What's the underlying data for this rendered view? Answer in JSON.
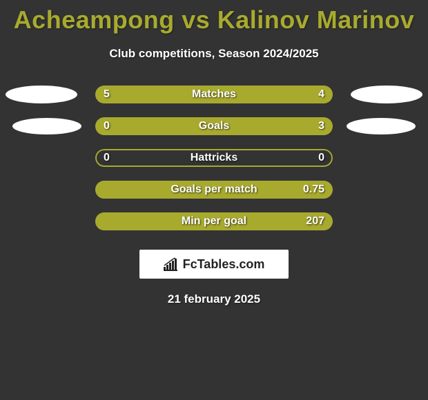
{
  "title": "Acheampong vs Kalinov Marinov",
  "subtitle": "Club competitions, Season 2024/2025",
  "brand": "FcTables.com",
  "date": "21 february 2025",
  "colors": {
    "background": "#333333",
    "accent": "#a8aa2e",
    "text": "#ffffff",
    "ellipse": "#ffffff",
    "brand_bg": "#ffffff",
    "brand_text": "#222222"
  },
  "rows": [
    {
      "label": "Matches",
      "left_value": "5",
      "right_value": "4",
      "fill_left_pct": 55.5,
      "fill_right_pct": 44.5,
      "show_ellipses": true
    },
    {
      "label": "Goals",
      "left_value": "0",
      "right_value": "3",
      "fill_left_pct": 19,
      "fill_right_pct": 81,
      "show_ellipses": true
    },
    {
      "label": "Hattricks",
      "left_value": "0",
      "right_value": "0",
      "fill_left_pct": 0,
      "fill_right_pct": 0,
      "show_ellipses": false
    },
    {
      "label": "Goals per match",
      "left_value": "",
      "right_value": "0.75",
      "fill_left_pct": 0,
      "fill_right_pct": 100,
      "show_ellipses": false
    },
    {
      "label": "Min per goal",
      "left_value": "",
      "right_value": "207",
      "fill_left_pct": 0,
      "fill_right_pct": 100,
      "show_ellipses": false
    }
  ]
}
